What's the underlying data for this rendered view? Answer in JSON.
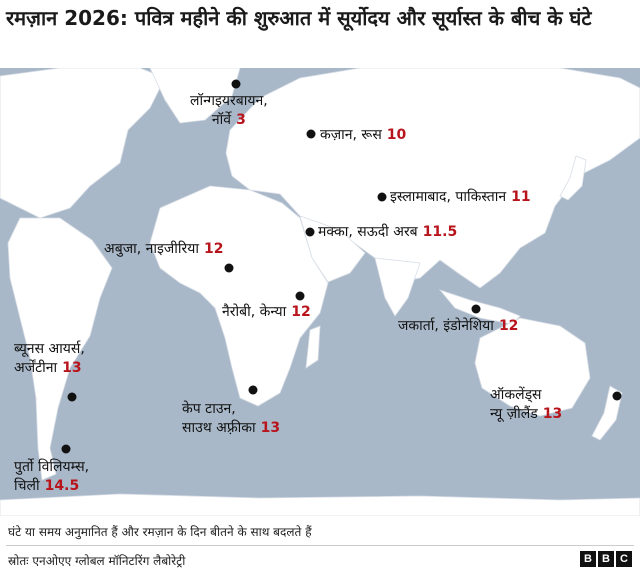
{
  "title": "रमज़ान 2026: पवित्र महीने की शुरुआत में सूर्योदय और सूर्यास्त के बीच के घंटे",
  "colors": {
    "ocean": "#a9b8c9",
    "land": "#ffffff",
    "hours": "#b8141c",
    "marker": "#111111"
  },
  "cities": [
    {
      "name": "लॉन्गइयरबायन,",
      "name2": "नॉर्वे",
      "hours": "3"
    },
    {
      "name": "कज़ान, रूस",
      "hours": "10"
    },
    {
      "name": "इस्लामाबाद, पाकिस्तान",
      "hours": "11"
    },
    {
      "name": "मक्का, सऊदी अरब",
      "hours": "11.5"
    },
    {
      "name": "अबुजा, नाइजीरिया",
      "hours": "12"
    },
    {
      "name": "नैरोबी, केन्या",
      "hours": "12"
    },
    {
      "name": "जकार्ता, इंडोनेशिया",
      "hours": "12"
    },
    {
      "name": "ब्यूनस आयर्स,",
      "name2": "अर्जेंटीना",
      "hours": "13"
    },
    {
      "name": "केप टाउन,",
      "name2": "साउथ अफ़्रीका",
      "hours": "13"
    },
    {
      "name": "ऑकलेंड्स",
      "name2": "न्यू ज़ीलैंड",
      "hours": "13"
    },
    {
      "name": "पुर्तो विलियम्स,",
      "name2": "चिली",
      "hours": "14.5"
    }
  ],
  "note": "घंटे या समय अनुमानित हैं और रमज़ान के दिन बीतने के साथ बदलते हैं",
  "source": "स्रोतः एनओएए ग्लोबल मॉनिटरिंग लैबोरेट्री",
  "logo": [
    "B",
    "B",
    "C"
  ]
}
